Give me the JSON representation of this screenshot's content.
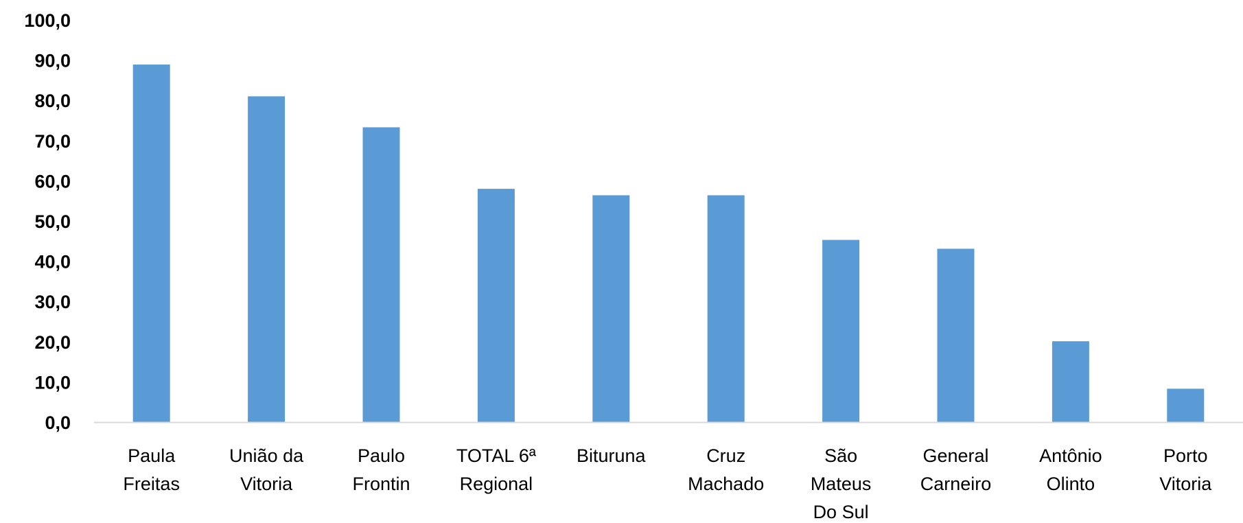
{
  "chart_data": {
    "type": "bar",
    "categories": [
      [
        "Paula",
        "Freitas"
      ],
      [
        "União da",
        "Vitoria"
      ],
      [
        "Paulo",
        "Frontin"
      ],
      [
        "TOTAL 6ª",
        "Regional"
      ],
      [
        "Bituruna"
      ],
      [
        "Cruz",
        "Machado"
      ],
      [
        "São",
        "Mateus",
        "Do Sul"
      ],
      [
        "General",
        "Carneiro"
      ],
      [
        "Antônio",
        "Olinto"
      ],
      [
        "Porto",
        "Vitoria"
      ]
    ],
    "values": [
      88.9,
      81.0,
      73.3,
      58.0,
      56.4,
      56.4,
      45.3,
      43.1,
      20.1,
      8.3
    ],
    "ylim": [
      0,
      100
    ],
    "yticks": [
      "0,0",
      "10,0",
      "20,0",
      "30,0",
      "40,0",
      "50,0",
      "60,0",
      "70,0",
      "80,0",
      "90,0",
      "100,0"
    ],
    "title": "",
    "xlabel": "",
    "ylabel": "",
    "grid": false,
    "legend": "none",
    "colors": {
      "bar": "#5b9bd5",
      "axis": "#d9d9d9",
      "text": "#000000"
    }
  }
}
